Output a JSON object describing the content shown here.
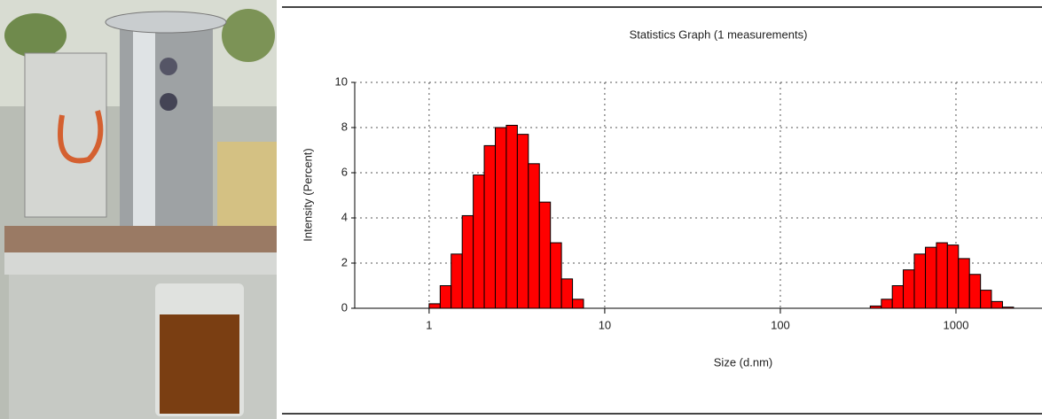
{
  "chart_data": {
    "type": "histogram",
    "title": "Statistics Graph (1 measurements)",
    "x_label": "Size (d.nm)",
    "y_label": "Intensity (Percent)",
    "log_x": true,
    "grid": true,
    "color": "#ff0000",
    "xlim": [
      0.377,
      3090
    ],
    "xticks": [
      1,
      10,
      100,
      1000
    ],
    "ylim": [
      0,
      10
    ],
    "yticks": [
      0,
      2,
      4,
      6,
      8,
      10
    ],
    "series": [
      {
        "bins": [
          1.0,
          1.156,
          1.335,
          1.543,
          1.783,
          2.06,
          2.381,
          2.751,
          3.18,
          3.674,
          4.246,
          4.907,
          5.67,
          6.553,
          7.572
        ],
        "values": [
          0.2,
          1.0,
          2.4,
          4.1,
          5.9,
          7.2,
          8.0,
          8.1,
          7.7,
          6.4,
          4.7,
          2.9,
          1.3,
          0.4
        ]
      },
      {
        "bins": [
          325,
          376,
          434,
          501,
          579,
          670,
          774,
          894,
          1033,
          1194,
          1380,
          1592,
          1841,
          2128
        ],
        "values": [
          0.1,
          0.4,
          1.0,
          1.7,
          2.4,
          2.7,
          2.9,
          2.8,
          2.2,
          1.5,
          0.8,
          0.3,
          0.05
        ]
      }
    ]
  }
}
